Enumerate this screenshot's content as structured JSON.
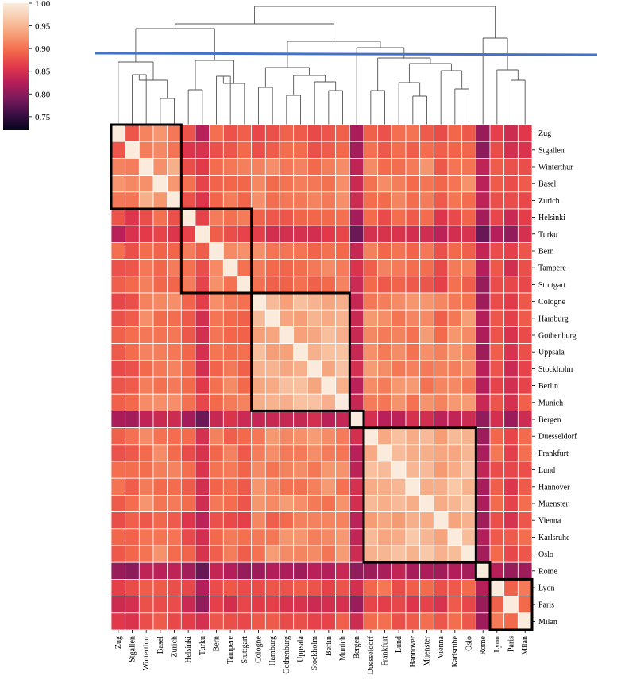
{
  "chart_data": {
    "type": "heatmap",
    "title": "",
    "labels": [
      "Zug",
      "Stgallen",
      "Winterthur",
      "Basel",
      "Zurich",
      "Helsinki",
      "Turku",
      "Bern",
      "Tampere",
      "Stuttgart",
      "Cologne",
      "Hamburg",
      "Gothenburg",
      "Uppsala",
      "Stockholm",
      "Berlin",
      "Munich",
      "Bergen",
      "Duesseldorf",
      "Frankfurt",
      "Lund",
      "Hannover",
      "Muenster",
      "Vienna",
      "Karlsruhe",
      "Oslo",
      "Rome",
      "Lyon",
      "Paris",
      "Milan"
    ],
    "colorbar": {
      "min": 0.72,
      "max": 1.0,
      "ticks": [
        "1.00",
        "0.95",
        "0.90",
        "0.85",
        "0.80",
        "0.75"
      ],
      "tick_values": [
        1.0,
        0.95,
        0.9,
        0.85,
        0.8,
        0.75
      ]
    },
    "clusters": [
      {
        "members": [
          "Zug",
          "Stgallen",
          "Winterthur",
          "Basel",
          "Zurich"
        ]
      },
      {
        "members": [
          "Helsinki",
          "Turku",
          "Bern",
          "Tampere",
          "Stuttgart"
        ]
      },
      {
        "members": [
          "Cologne",
          "Hamburg",
          "Gothenburg",
          "Uppsala",
          "Stockholm",
          "Berlin",
          "Munich"
        ]
      },
      {
        "members": [
          "Bergen"
        ]
      },
      {
        "members": [
          "Duesseldorf",
          "Frankfurt",
          "Lund",
          "Hannover",
          "Muenster",
          "Vienna",
          "Karlsruhe",
          "Oslo"
        ]
      },
      {
        "members": [
          "Rome"
        ]
      },
      {
        "members": [
          "Lyon",
          "Paris",
          "Milan"
        ]
      }
    ],
    "dendrogram_cut": 0.905,
    "grid": true,
    "legend": "top-left",
    "colors": {
      "cmap": [
        "#03051a",
        "#3b0f45",
        "#7a1a5b",
        "#b51e5a",
        "#e2384a",
        "#f3694b",
        "#f69d75",
        "#f8c8a9",
        "#faebdd"
      ],
      "cut_line": "#4472c4",
      "cluster_box": "#000000",
      "dendrogram": "#555555"
    }
  }
}
